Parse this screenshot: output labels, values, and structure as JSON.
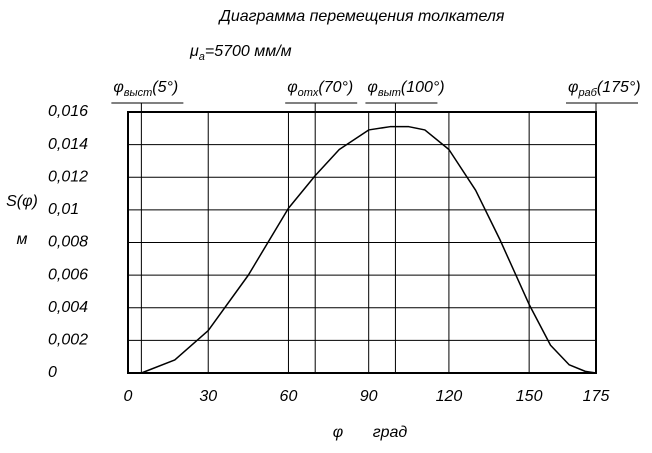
{
  "chart_data": {
    "type": "line",
    "title": "Диаграмма перемещения толкателя",
    "scale_label": {
      "symbol": "μ",
      "sub": "a",
      "text": "=5700 мм/м"
    },
    "y_label": "S(φ)",
    "y_unit": "м",
    "x_label": "φ",
    "x_unit": "град",
    "x": [
      0,
      5,
      17.5,
      30,
      45,
      60,
      70,
      79,
      90,
      98,
      105,
      111,
      120,
      130,
      139,
      150,
      158,
      165,
      171,
      175
    ],
    "series": [
      {
        "name": "S(φ)",
        "color": "#000000",
        "values": [
          0,
          0,
          0.0008,
          0.0026,
          0.006,
          0.0101,
          0.0121,
          0.0137,
          0.0149,
          0.0151,
          0.0151,
          0.0149,
          0.0137,
          0.0112,
          0.0082,
          0.0042,
          0.0017,
          0.0005,
          0.0001,
          0
        ]
      }
    ],
    "xlim": [
      0,
      175
    ],
    "xticks": [
      0,
      30,
      60,
      90,
      120,
      150,
      175
    ],
    "ylim": [
      0,
      0.016
    ],
    "yticks": [
      0,
      {
        "value": 0.002,
        "label": "0,002"
      },
      {
        "value": 0.004,
        "label": "0,004"
      },
      {
        "value": 0.006,
        "label": "0,006"
      },
      {
        "value": 0.008,
        "label": "0,008"
      },
      {
        "value": 0.01,
        "label": "0,01"
      },
      {
        "value": 0.012,
        "label": "0,012"
      },
      {
        "value": 0.014,
        "label": "0,014"
      },
      {
        "value": 0.016,
        "label": "0,016"
      }
    ],
    "grid": true,
    "phase_marks": [
      {
        "symbol": "φ",
        "sub": "выст",
        "text": "(5°)",
        "x": 5
      },
      {
        "symbol": "φ",
        "sub": "отх",
        "text": "(70°)",
        "x": 70
      },
      {
        "symbol": "φ",
        "sub": "выт",
        "text": "(100°)",
        "x": 100
      },
      {
        "symbol": "φ",
        "sub": "раб",
        "text": "(175°)",
        "x": 175
      }
    ]
  }
}
